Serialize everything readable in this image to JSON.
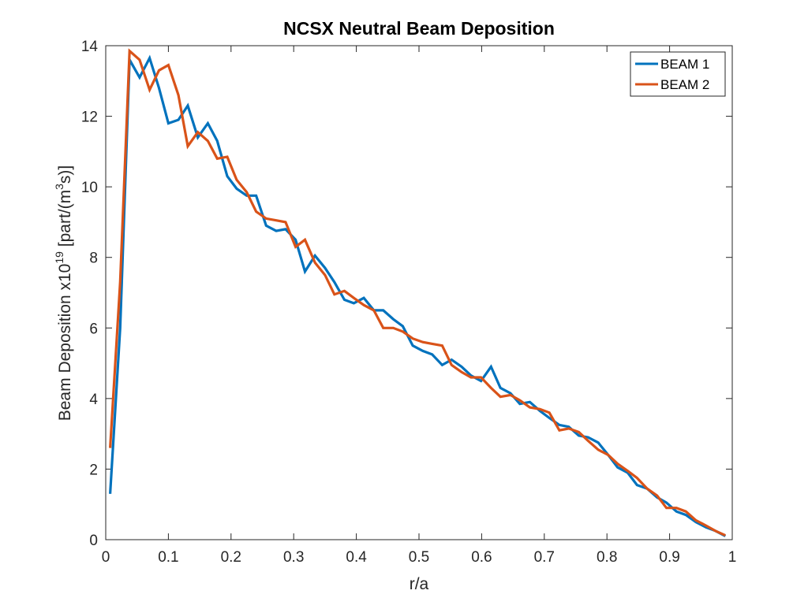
{
  "chart_data": {
    "type": "line",
    "title": "NCSX Neutral Beam Deposition",
    "xlabel": "r/a",
    "ylabel": {
      "base": "Beam Deposition x10",
      "exp": "19",
      "unit_pre": " [part/(m",
      "unit_exp": "3",
      "unit_post": "s)]"
    },
    "xlim": [
      0,
      1
    ],
    "ylim": [
      0,
      14
    ],
    "xticks": [
      0,
      0.1,
      0.2,
      0.3,
      0.4,
      0.5,
      0.6,
      0.7,
      0.8,
      0.9,
      1
    ],
    "xtick_labels": [
      "0",
      "0.1",
      "0.2",
      "0.3",
      "0.4",
      "0.5",
      "0.6",
      "0.7",
      "0.8",
      "0.9",
      "1"
    ],
    "yticks": [
      0,
      2,
      4,
      6,
      8,
      10,
      12,
      14
    ],
    "ytick_labels": [
      "0",
      "2",
      "4",
      "6",
      "8",
      "10",
      "12",
      "14"
    ],
    "grid": false,
    "legend": "top-right",
    "series": [
      {
        "name": "BEAM 1",
        "color": "#0072BD",
        "x": [
          0.007,
          0.023,
          0.038,
          0.054,
          0.07,
          0.085,
          0.1,
          0.116,
          0.131,
          0.147,
          0.163,
          0.178,
          0.194,
          0.209,
          0.225,
          0.24,
          0.256,
          0.272,
          0.287,
          0.303,
          0.318,
          0.334,
          0.35,
          0.365,
          0.381,
          0.396,
          0.412,
          0.428,
          0.443,
          0.459,
          0.474,
          0.49,
          0.506,
          0.521,
          0.537,
          0.552,
          0.568,
          0.583,
          0.599,
          0.615,
          0.63,
          0.646,
          0.661,
          0.677,
          0.693,
          0.708,
          0.724,
          0.739,
          0.755,
          0.77,
          0.786,
          0.802,
          0.817,
          0.833,
          0.848,
          0.864,
          0.88,
          0.895,
          0.911,
          0.926,
          0.942,
          0.958,
          0.973,
          0.989
        ],
        "values": [
          1.3,
          6.0,
          13.6,
          13.1,
          13.65,
          12.8,
          11.8,
          11.9,
          12.3,
          11.4,
          11.8,
          11.3,
          10.3,
          9.95,
          9.75,
          9.75,
          8.9,
          8.75,
          8.8,
          8.5,
          7.6,
          8.05,
          7.7,
          7.3,
          6.8,
          6.7,
          6.85,
          6.5,
          6.5,
          6.25,
          6.05,
          5.5,
          5.35,
          5.25,
          4.95,
          5.1,
          4.9,
          4.65,
          4.5,
          4.9,
          4.3,
          4.15,
          3.85,
          3.9,
          3.65,
          3.45,
          3.25,
          3.2,
          2.95,
          2.9,
          2.75,
          2.4,
          2.05,
          1.9,
          1.55,
          1.45,
          1.2,
          1.05,
          0.8,
          0.7,
          0.5,
          0.35,
          0.25,
          0.1
        ]
      },
      {
        "name": "BEAM 2",
        "color": "#D95319",
        "x": [
          0.007,
          0.023,
          0.038,
          0.054,
          0.07,
          0.085,
          0.1,
          0.116,
          0.131,
          0.147,
          0.163,
          0.178,
          0.194,
          0.209,
          0.225,
          0.24,
          0.256,
          0.272,
          0.287,
          0.303,
          0.318,
          0.334,
          0.35,
          0.365,
          0.381,
          0.396,
          0.412,
          0.428,
          0.443,
          0.459,
          0.474,
          0.49,
          0.506,
          0.521,
          0.537,
          0.552,
          0.568,
          0.583,
          0.599,
          0.615,
          0.63,
          0.646,
          0.661,
          0.677,
          0.693,
          0.708,
          0.724,
          0.739,
          0.755,
          0.77,
          0.786,
          0.802,
          0.817,
          0.833,
          0.848,
          0.864,
          0.88,
          0.895,
          0.911,
          0.926,
          0.942,
          0.958,
          0.973,
          0.989
        ],
        "values": [
          2.6,
          7.3,
          13.85,
          13.6,
          12.75,
          13.3,
          13.45,
          12.6,
          11.15,
          11.55,
          11.3,
          10.8,
          10.85,
          10.2,
          9.85,
          9.3,
          9.1,
          9.05,
          9.0,
          8.3,
          8.5,
          7.85,
          7.5,
          6.95,
          7.05,
          6.85,
          6.65,
          6.5,
          6.0,
          6.0,
          5.9,
          5.7,
          5.6,
          5.55,
          5.5,
          4.95,
          4.75,
          4.6,
          4.6,
          4.3,
          4.05,
          4.1,
          3.95,
          3.75,
          3.7,
          3.6,
          3.1,
          3.15,
          3.05,
          2.8,
          2.55,
          2.4,
          2.15,
          1.95,
          1.75,
          1.45,
          1.25,
          0.9,
          0.9,
          0.8,
          0.55,
          0.4,
          0.25,
          0.12
        ]
      }
    ]
  }
}
